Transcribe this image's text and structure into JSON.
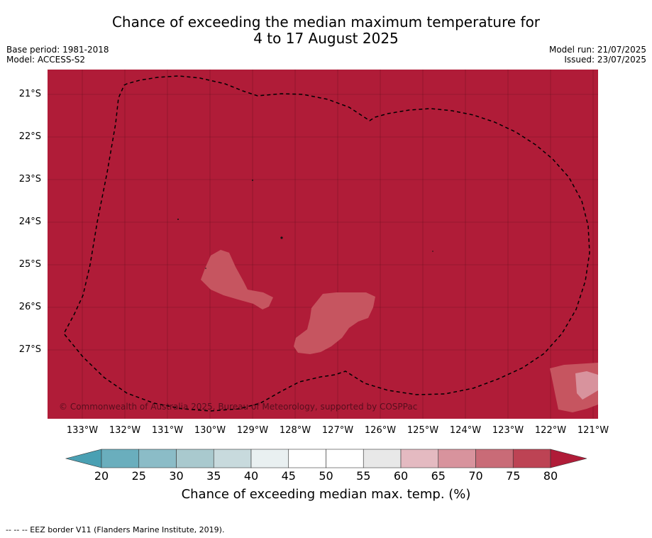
{
  "title": {
    "line1": "Chance of exceeding the median maximum temperature for",
    "line2": "4 to 17 August 2025"
  },
  "meta_left": {
    "base_period": "Base period: 1981-2018",
    "model": "Model: ACCESS-S2"
  },
  "meta_right": {
    "model_run": "Model run: 21/07/2025",
    "issued": "Issued: 23/07/2025"
  },
  "map": {
    "background_color": "#b01c38",
    "latitude_labels": [
      "21°S",
      "22°S",
      "23°S",
      "24°S",
      "25°S",
      "26°S",
      "27°S"
    ],
    "longitude_labels": [
      "133°W",
      "132°W",
      "131°W",
      "130°W",
      "129°W",
      "128°W",
      "127°W",
      "126°W",
      "125°W",
      "124°W",
      "123°W",
      "122°W",
      "121°W"
    ],
    "watermark": "© Commonwealth of Australia 2025, Bureau of Meteorology, supported by COSPPac",
    "gridlines": true,
    "eez_border": "dashed"
  },
  "colorbar": {
    "ticks": [
      "20",
      "25",
      "30",
      "35",
      "40",
      "45",
      "50",
      "55",
      "60",
      "65",
      "70",
      "75",
      "80"
    ],
    "colors": [
      "#6aaebd",
      "#8bbcc7",
      "#a9c9ce",
      "#c8dadd",
      "#e9f0f1",
      "#ffffff",
      "#ffffff",
      "#e8e8e8",
      "#e4bac1",
      "#d8939d",
      "#c96b77",
      "#bd4354"
    ],
    "under_color": "#4aa0b3",
    "over_color": "#b01c38",
    "label": "Chance of exceeding median max. temp. (%)"
  },
  "footnote": "--  --  -- EEZ border V11 (Flanders Marine Institute, 2019)."
}
